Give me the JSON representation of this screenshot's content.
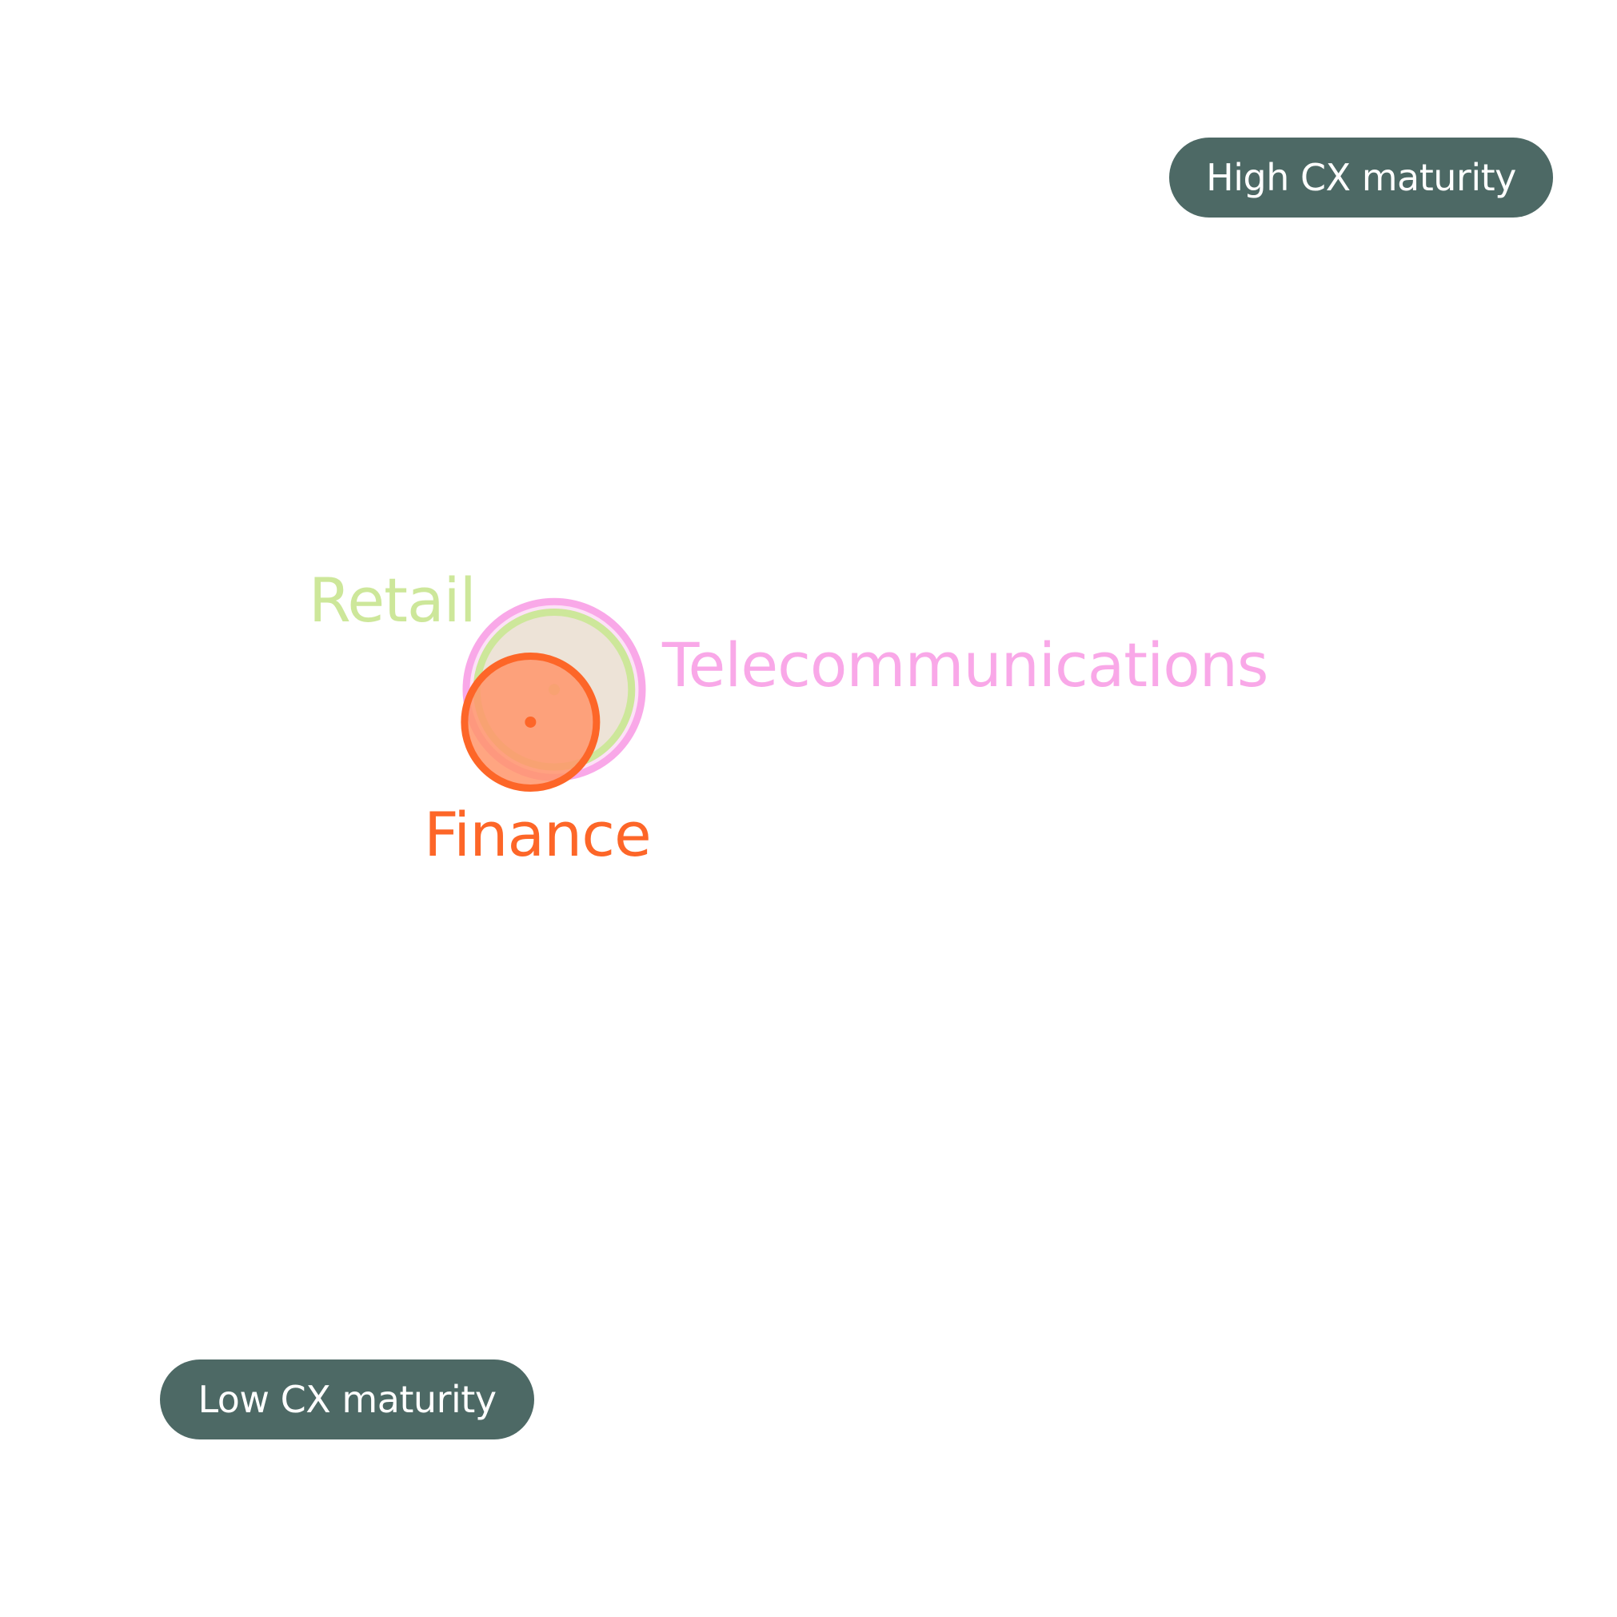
{
  "chart_data": {
    "type": "scatter",
    "title": "",
    "xlabel": "",
    "ylabel": "",
    "xlim": [
      0,
      100
    ],
    "ylim": [
      0,
      100
    ],
    "grid": false,
    "corner_labels": {
      "high": "High CX maturity",
      "low": "Low CX maturity"
    },
    "corner_label_colors": {
      "background": "#4d6965",
      "text": "#ffffff"
    },
    "series": [
      {
        "name": "Telecommunications",
        "x": 28.3,
        "y": 57.6,
        "size": 100,
        "color": "#f9a8e8",
        "fill": "#f9a8e8"
      },
      {
        "name": "Retail",
        "x": 28.3,
        "y": 57.6,
        "size": 88,
        "color": "#cde79a",
        "fill": "#cde79a"
      },
      {
        "name": "Finance",
        "x": 26.6,
        "y": 55.1,
        "size": 75,
        "color": "#fd6628",
        "fill": "#ff956b"
      }
    ]
  }
}
